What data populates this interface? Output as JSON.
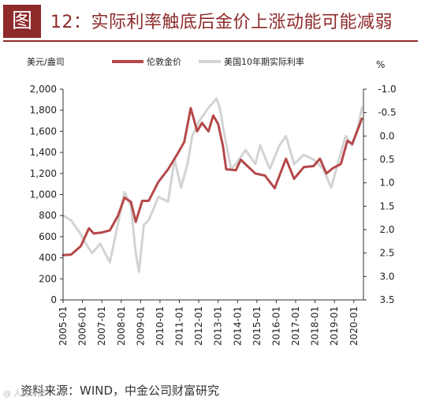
{
  "figure": {
    "number": "图",
    "title": "12：实际利率触底后金价上涨动能可能减弱",
    "source": "资料来源：WIND，中金公司财富研究",
    "watermark": "@ 人民日报"
  },
  "colors": {
    "gold": "#b5484a",
    "real_rate": "#d3d3d3",
    "accent": "#8e2a2a",
    "axis": "#333333"
  },
  "chart_data": {
    "type": "line",
    "left_axis_label": "美元/盎司",
    "right_axis_label": "%",
    "left_ylim": [
      0,
      2000
    ],
    "left_ticks": [
      0,
      200,
      400,
      600,
      800,
      1000,
      1200,
      1400,
      1600,
      1800,
      2000
    ],
    "left_tick_labels": [
      "0",
      "200",
      "400",
      "600",
      "800",
      "1,000",
      "1,200",
      "1,400",
      "1,600",
      "1,800",
      "2,000"
    ],
    "right_ylim": [
      -1.0,
      3.5
    ],
    "right_inverted": true,
    "right_ticks": [
      -1.0,
      -0.5,
      0.0,
      0.5,
      1.0,
      1.5,
      2.0,
      2.5,
      3.0,
      3.5
    ],
    "right_tick_labels": [
      "-1.0",
      "-0.5",
      "0.0",
      "0.5",
      "1.0",
      "1.5",
      "2.0",
      "2.5",
      "3.0",
      "3.5"
    ],
    "x_range": [
      "2005-01",
      "2020-06"
    ],
    "x_tick_labels": [
      "2005-01",
      "2006-01",
      "2007-01",
      "2008-01",
      "2009-01",
      "2010-01",
      "2011-01",
      "2012-01",
      "2013-01",
      "2014-01",
      "2015-01",
      "2016-01",
      "2017-01",
      "2018-01",
      "2019-01",
      "2020-01"
    ],
    "legend_position": "top",
    "series": [
      {
        "name": "伦敦金价",
        "axis": "left",
        "points": [
          [
            "2005-01",
            425
          ],
          [
            "2005-06",
            430
          ],
          [
            "2005-12",
            510
          ],
          [
            "2006-05",
            680
          ],
          [
            "2006-08",
            630
          ],
          [
            "2007-01",
            640
          ],
          [
            "2007-06",
            660
          ],
          [
            "2007-11",
            800
          ],
          [
            "2008-03",
            970
          ],
          [
            "2008-07",
            930
          ],
          [
            "2008-10",
            740
          ],
          [
            "2009-02",
            940
          ],
          [
            "2009-06",
            940
          ],
          [
            "2009-12",
            1120
          ],
          [
            "2010-06",
            1240
          ],
          [
            "2010-12",
            1390
          ],
          [
            "2011-04",
            1500
          ],
          [
            "2011-08",
            1820
          ],
          [
            "2011-12",
            1600
          ],
          [
            "2012-03",
            1680
          ],
          [
            "2012-07",
            1600
          ],
          [
            "2012-10",
            1750
          ],
          [
            "2013-01",
            1670
          ],
          [
            "2013-04",
            1460
          ],
          [
            "2013-06",
            1240
          ],
          [
            "2013-12",
            1230
          ],
          [
            "2014-03",
            1330
          ],
          [
            "2014-12",
            1200
          ],
          [
            "2015-06",
            1180
          ],
          [
            "2015-12",
            1060
          ],
          [
            "2016-07",
            1340
          ],
          [
            "2016-12",
            1150
          ],
          [
            "2017-06",
            1260
          ],
          [
            "2017-12",
            1270
          ],
          [
            "2018-04",
            1340
          ],
          [
            "2018-08",
            1200
          ],
          [
            "2018-12",
            1250
          ],
          [
            "2019-05",
            1290
          ],
          [
            "2019-09",
            1510
          ],
          [
            "2019-12",
            1480
          ],
          [
            "2020-03",
            1600
          ],
          [
            "2020-06",
            1720
          ]
        ]
      },
      {
        "name": "美国10年期实际利率",
        "axis": "right",
        "points": [
          [
            "2005-01",
            1.7
          ],
          [
            "2005-06",
            1.8
          ],
          [
            "2005-12",
            2.1
          ],
          [
            "2006-03",
            2.3
          ],
          [
            "2006-07",
            2.5
          ],
          [
            "2006-12",
            2.3
          ],
          [
            "2007-06",
            2.7
          ],
          [
            "2007-12",
            1.7
          ],
          [
            "2008-03",
            1.2
          ],
          [
            "2008-07",
            1.5
          ],
          [
            "2008-10",
            2.5
          ],
          [
            "2008-12",
            2.9
          ],
          [
            "2009-03",
            1.9
          ],
          [
            "2009-06",
            1.8
          ],
          [
            "2009-12",
            1.3
          ],
          [
            "2010-06",
            1.4
          ],
          [
            "2010-10",
            0.5
          ],
          [
            "2011-02",
            1.1
          ],
          [
            "2011-06",
            0.6
          ],
          [
            "2011-09",
            0.0
          ],
          [
            "2012-01",
            -0.3
          ],
          [
            "2012-07",
            -0.6
          ],
          [
            "2012-12",
            -0.8
          ],
          [
            "2013-02",
            -0.6
          ],
          [
            "2013-05",
            0.0
          ],
          [
            "2013-09",
            0.7
          ],
          [
            "2013-12",
            0.6
          ],
          [
            "2014-06",
            0.3
          ],
          [
            "2014-12",
            0.6
          ],
          [
            "2015-03",
            0.2
          ],
          [
            "2015-09",
            0.7
          ],
          [
            "2016-03",
            0.2
          ],
          [
            "2016-07",
            0.0
          ],
          [
            "2016-12",
            0.6
          ],
          [
            "2017-06",
            0.4
          ],
          [
            "2017-12",
            0.5
          ],
          [
            "2018-06",
            0.7
          ],
          [
            "2018-11",
            1.1
          ],
          [
            "2019-03",
            0.6
          ],
          [
            "2019-08",
            0.0
          ],
          [
            "2019-12",
            0.2
          ],
          [
            "2020-03",
            -0.1
          ],
          [
            "2020-06",
            -0.6
          ]
        ]
      }
    ]
  }
}
